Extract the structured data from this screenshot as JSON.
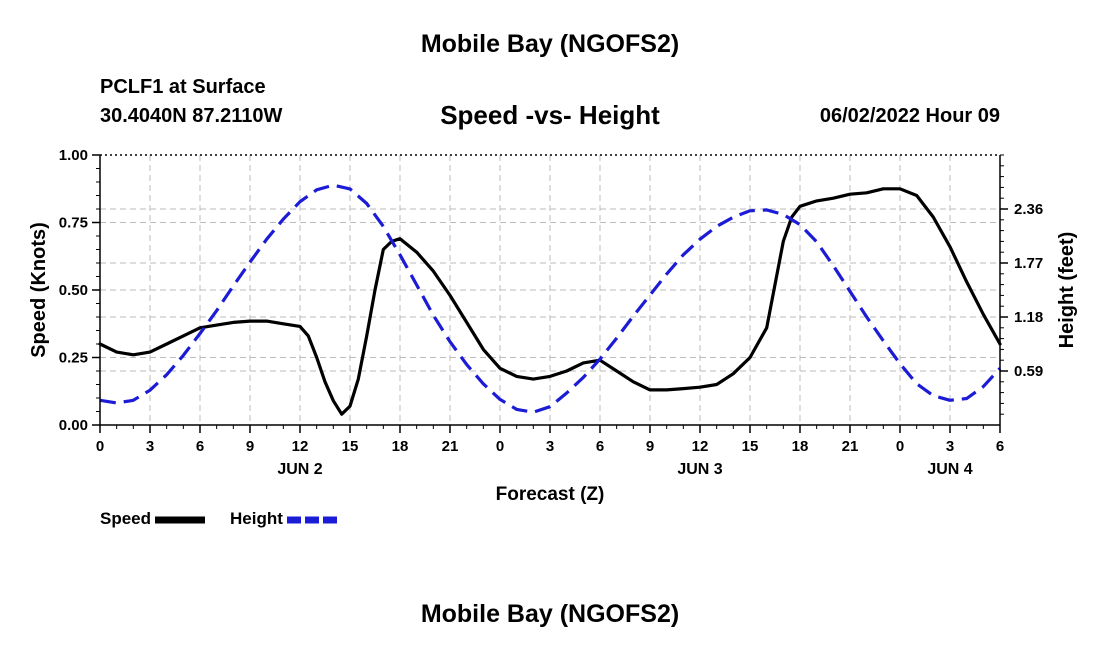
{
  "header": {
    "main_title": "Mobile Bay (NGOFS2)",
    "station": "PCLF1 at Surface",
    "coords": "30.4040N  87.2110W",
    "chart_title": "Speed -vs- Height",
    "datetime": "06/02/2022 Hour 09"
  },
  "footer": {
    "title": "Mobile Bay (NGOFS2)"
  },
  "legend": {
    "speed_label": "Speed",
    "height_label": "Height"
  },
  "colors": {
    "speed": "#000000",
    "height": "#1c1cd6",
    "grid": "#bbbbbb"
  },
  "chart_data": {
    "type": "line",
    "title": "Speed -vs- Height",
    "xlabel": "Forecast (Z)",
    "ylabel": "Speed (Knots)",
    "y2label": "Height (feet)",
    "xlim": [
      0,
      54
    ],
    "ylim": [
      0,
      1.0
    ],
    "y2lim": [
      0,
      2.95
    ],
    "x_ticks": [
      0,
      3,
      6,
      9,
      12,
      15,
      18,
      21,
      24,
      27,
      30,
      33,
      36,
      39,
      42,
      45,
      48,
      51,
      54
    ],
    "x_tick_labels": [
      "0",
      "3",
      "6",
      "9",
      "12",
      "15",
      "18",
      "21",
      "0",
      "3",
      "6",
      "9",
      "12",
      "15",
      "18",
      "21",
      "0",
      "3",
      "6"
    ],
    "y_ticks": [
      0.0,
      0.25,
      0.5,
      0.75,
      1.0
    ],
    "y_tick_labels": [
      "0.00",
      "0.25",
      "0.50",
      "0.75",
      "1.00"
    ],
    "y2_ticks": [
      0.59,
      1.18,
      1.77,
      2.36
    ],
    "y2_tick_labels": [
      "0.59",
      "1.18",
      "1.77",
      "2.36"
    ],
    "day_labels": [
      {
        "x": 12,
        "label": "JUN 2"
      },
      {
        "x": 36,
        "label": "JUN 3"
      },
      {
        "x": 51,
        "label": "JUN 4"
      }
    ],
    "grid": true,
    "legend_position": "bottom-left",
    "series": [
      {
        "name": "Speed",
        "axis": "left",
        "style": "solid",
        "x": [
          0,
          1,
          2,
          3,
          4,
          5,
          6,
          7,
          8,
          9,
          10,
          11,
          12,
          12.5,
          13,
          13.5,
          14,
          14.5,
          15,
          15.5,
          16,
          16.5,
          17,
          17.5,
          18,
          19,
          20,
          21,
          22,
          23,
          24,
          25,
          26,
          27,
          28,
          29,
          30,
          31,
          32,
          33,
          34,
          35,
          36,
          37,
          38,
          39,
          40,
          40.5,
          41,
          41.5,
          42,
          43,
          44,
          45,
          46,
          47,
          48,
          49,
          50,
          51,
          52,
          53,
          54
        ],
        "values": [
          0.3,
          0.27,
          0.26,
          0.27,
          0.3,
          0.33,
          0.36,
          0.37,
          0.38,
          0.385,
          0.385,
          0.375,
          0.365,
          0.33,
          0.25,
          0.16,
          0.09,
          0.04,
          0.07,
          0.17,
          0.33,
          0.5,
          0.65,
          0.68,
          0.69,
          0.64,
          0.57,
          0.48,
          0.38,
          0.28,
          0.21,
          0.18,
          0.17,
          0.18,
          0.2,
          0.23,
          0.24,
          0.2,
          0.16,
          0.13,
          0.13,
          0.135,
          0.14,
          0.15,
          0.19,
          0.25,
          0.36,
          0.52,
          0.68,
          0.77,
          0.81,
          0.83,
          0.84,
          0.855,
          0.86,
          0.875,
          0.875,
          0.85,
          0.77,
          0.66,
          0.53,
          0.41,
          0.3
        ]
      },
      {
        "name": "Height",
        "axis": "right",
        "style": "dashed",
        "x": [
          0,
          1,
          2,
          3,
          4,
          5,
          6,
          7,
          8,
          9,
          10,
          11,
          12,
          13,
          14,
          15,
          16,
          17,
          18,
          19,
          20,
          21,
          22,
          23,
          24,
          25,
          26,
          27,
          28,
          29,
          30,
          31,
          32,
          33,
          34,
          35,
          36,
          37,
          38,
          39,
          40,
          41,
          42,
          43,
          44,
          45,
          46,
          47,
          48,
          49,
          50,
          51,
          52,
          53,
          54
        ],
        "values": [
          0.27,
          0.24,
          0.27,
          0.38,
          0.55,
          0.76,
          1.0,
          1.25,
          1.52,
          1.78,
          2.03,
          2.25,
          2.44,
          2.57,
          2.62,
          2.58,
          2.42,
          2.17,
          1.86,
          1.53,
          1.2,
          0.91,
          0.66,
          0.45,
          0.28,
          0.17,
          0.14,
          0.2,
          0.35,
          0.52,
          0.72,
          0.95,
          1.19,
          1.42,
          1.65,
          1.86,
          2.03,
          2.17,
          2.27,
          2.34,
          2.35,
          2.3,
          2.19,
          2.0,
          1.74,
          1.46,
          1.18,
          0.92,
          0.67,
          0.45,
          0.32,
          0.27,
          0.29,
          0.42,
          0.62
        ]
      }
    ]
  }
}
